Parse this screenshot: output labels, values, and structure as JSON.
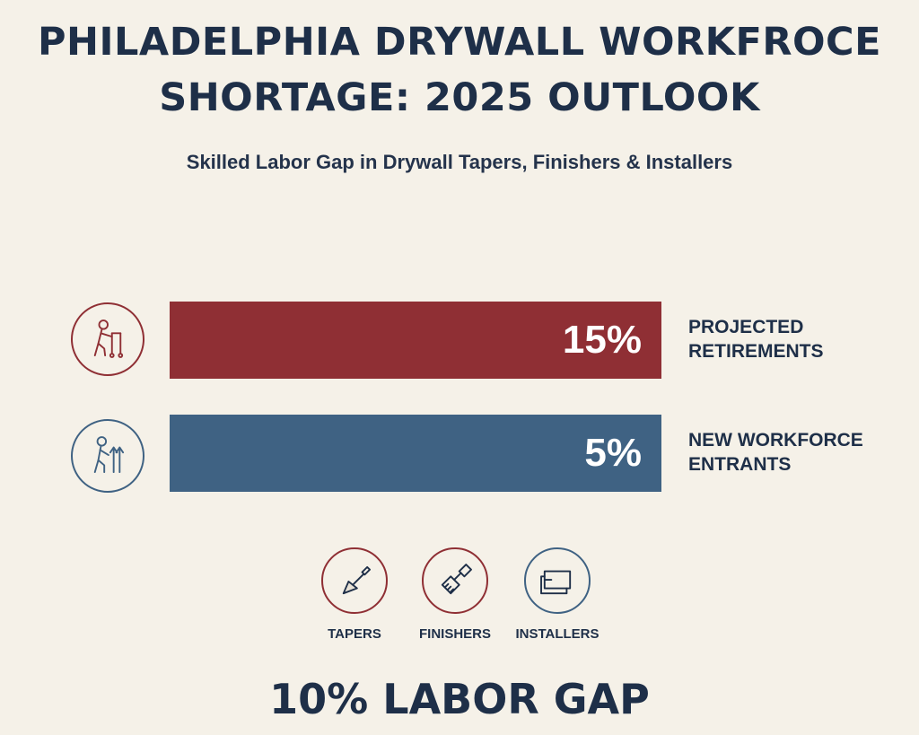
{
  "title_line1": "PHILADELPHIA DRYWALL WORKFROCE",
  "title_line2": "SHORTAGE: 2025 OUTLOOK",
  "subtitle": "Skilled Labor Gap in Drywall Tapers, Finishers & Installers",
  "colors": {
    "red": "#8f2f34",
    "blue": "#3f6283",
    "navy": "#1e2f48",
    "background": "#f5f1e8"
  },
  "chart_data": {
    "type": "bar",
    "orientation": "horizontal",
    "categories": [
      "PROJECTED RETIREMENTS",
      "NEW WORKFORCE ENTRANTS"
    ],
    "values": [
      15,
      5
    ],
    "value_labels": [
      "15%",
      "5%"
    ],
    "label_lines": [
      [
        "PROJECTED",
        "RETIREMENTS"
      ],
      [
        "NEW WORKFORCE",
        "ENTRANTS"
      ]
    ],
    "icons": [
      "walker-icon",
      "person-arrow-up-icon"
    ]
  },
  "roles": [
    {
      "label": "TAPERS",
      "icon": "trowel-icon"
    },
    {
      "label": "FINISHERS",
      "icon": "paint-brush-icon"
    },
    {
      "label": "INSTALLERS",
      "icon": "drywall-panel-icon"
    }
  ],
  "labor_gap": "10% LABOR GAP"
}
